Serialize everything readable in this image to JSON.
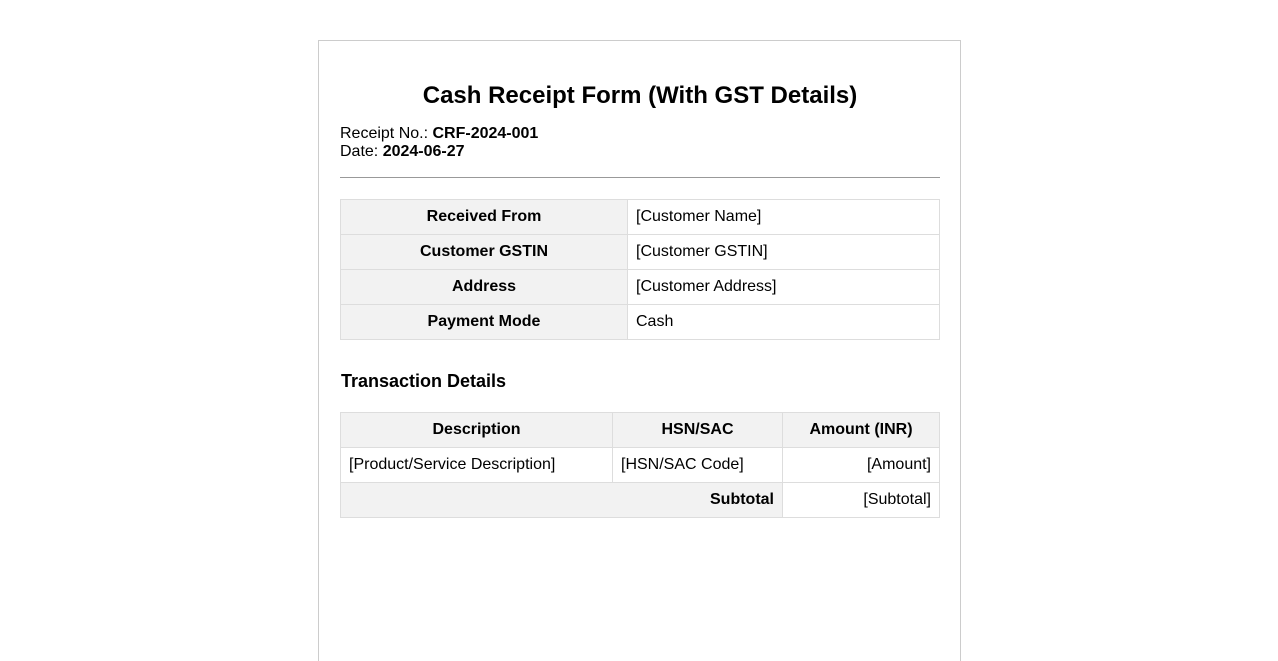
{
  "title": "Cash Receipt Form (With GST Details)",
  "receipt": {
    "no_label": "Receipt No.:",
    "no_value": "CRF-2024-001",
    "date_label": "Date:",
    "date_value": "2024-06-27"
  },
  "info": [
    {
      "label": "Received From",
      "value": "[Customer Name]"
    },
    {
      "label": "Customer GSTIN",
      "value": "[Customer GSTIN]"
    },
    {
      "label": "Address",
      "value": "[Customer Address]"
    },
    {
      "label": "Payment Mode",
      "value": "Cash"
    }
  ],
  "transactions": {
    "heading": "Transaction Details",
    "headers": [
      "Description",
      "HSN/SAC",
      "Amount (INR)"
    ],
    "rows": [
      [
        "[Product/Service Description]",
        "[HSN/SAC Code]",
        "[Amount]"
      ]
    ],
    "subtotal_label": "Subtotal",
    "subtotal_value": "[Subtotal]"
  }
}
